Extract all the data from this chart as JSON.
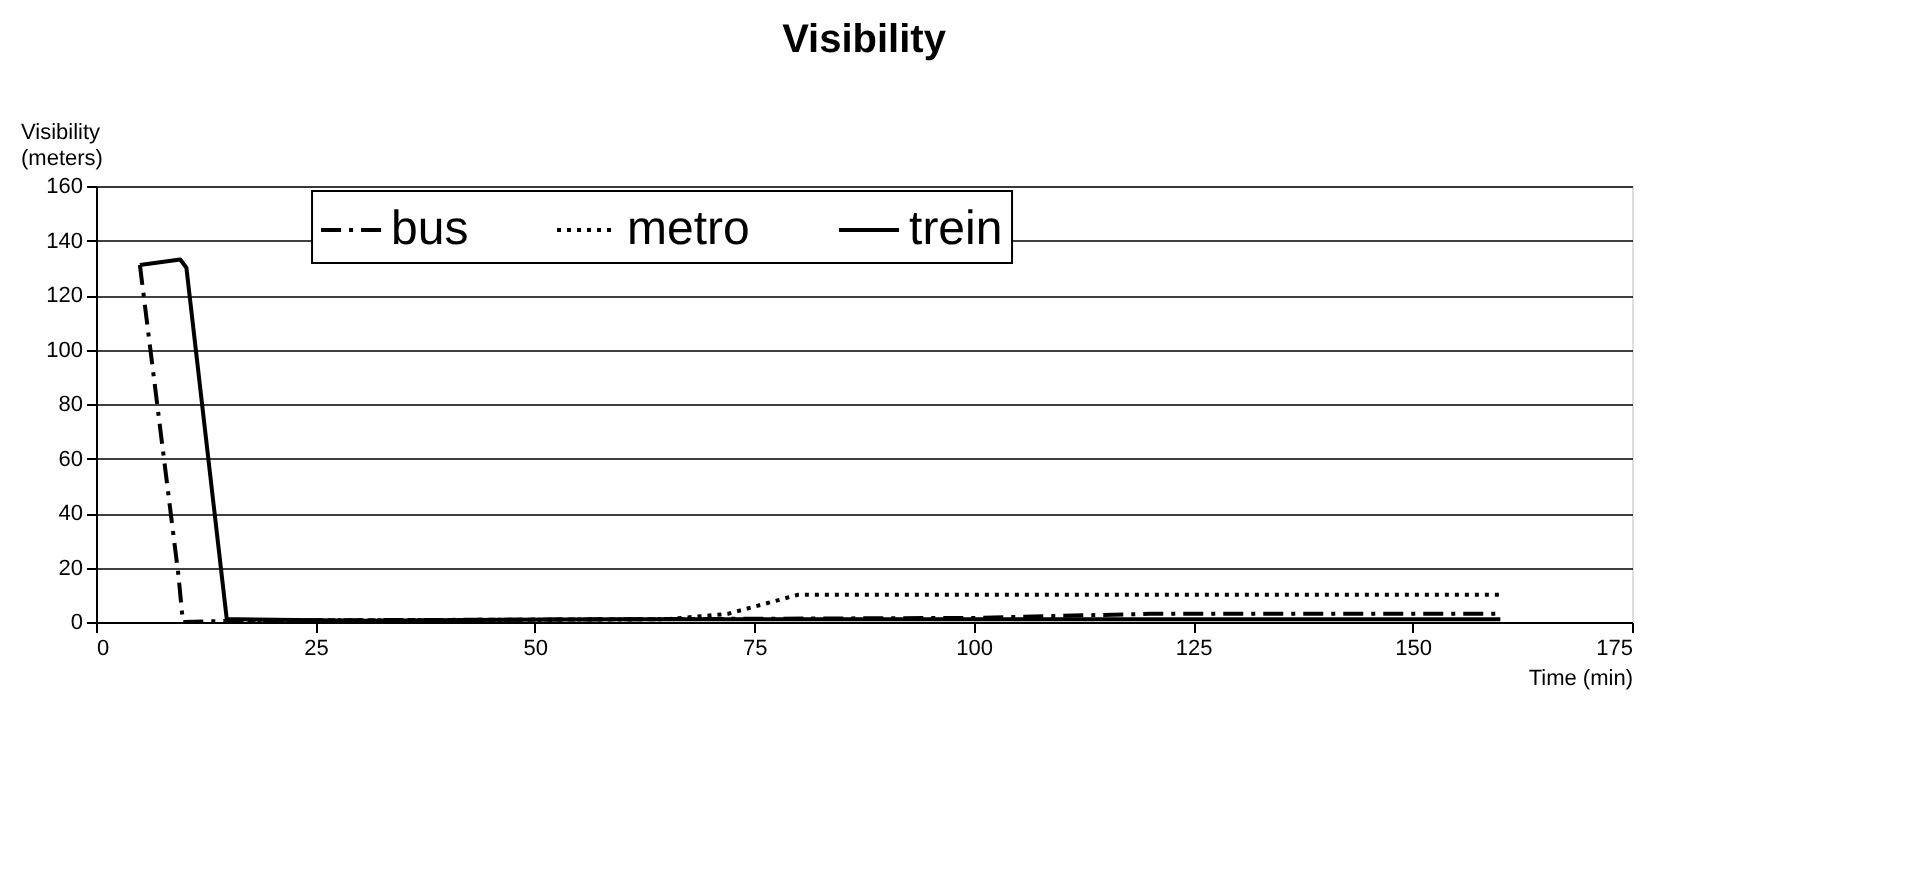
{
  "chart_data": {
    "type": "line",
    "title": "Visibility",
    "xlabel": "Time (min)",
    "ylabel": "Visibility\n(meters)",
    "xlim": [
      0,
      175
    ],
    "xticks": [
      0,
      25,
      50,
      75,
      100,
      125,
      150,
      175
    ],
    "ylim": [
      0,
      160
    ],
    "yticks": [
      0,
      20,
      40,
      60,
      80,
      100,
      120,
      140,
      160
    ],
    "grid": "y",
    "legend": "top",
    "marker": "none",
    "series": [
      {
        "name": "bus",
        "color": "#000000",
        "line_style": "dashdot",
        "x": [
          5,
          9.4,
          9.9,
          16,
          60,
          100,
          120,
          160
        ],
        "values": [
          131,
          17,
          0,
          0.5,
          1,
          1.5,
          3,
          3
        ]
      },
      {
        "name": "metro",
        "color": "#000000",
        "line_style": "dotted",
        "x": [
          15,
          65,
          72,
          80,
          160
        ],
        "values": [
          0.5,
          1,
          3,
          10,
          10
        ]
      },
      {
        "name": "trein",
        "color": "#000000",
        "line_style": "solid",
        "x": [
          5,
          9.6,
          10.3,
          14.9,
          16,
          30,
          60,
          100,
          160
        ],
        "values": [
          131,
          133,
          130,
          1,
          1,
          0.5,
          1,
          1,
          1
        ]
      }
    ]
  }
}
